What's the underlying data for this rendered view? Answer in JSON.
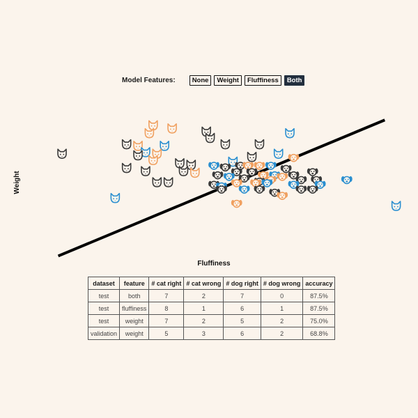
{
  "controls": {
    "label": "Model Features:",
    "buttons": [
      {
        "label": "None",
        "active": false
      },
      {
        "label": "Weight",
        "active": false
      },
      {
        "label": "Fluffiness",
        "active": false
      },
      {
        "label": "Both",
        "active": true
      }
    ]
  },
  "colors": {
    "background": "#fbf4ec",
    "dark": "#3a3a3a",
    "orange": "#f0a060",
    "blue": "#2a8fd0",
    "line": "#000000",
    "active_button": "#232f3e"
  },
  "chart_data": {
    "type": "scatter",
    "xlabel": "Fluffiness",
    "ylabel": "Weight",
    "xlim": [
      0,
      100
    ],
    "ylim": [
      0,
      100
    ],
    "decision_boundary": {
      "x": [
        8,
        94
      ],
      "y": [
        2,
        88
      ]
    },
    "legend": null,
    "points": [
      {
        "x": 33,
        "y": 84,
        "animal": "cat",
        "color": "orange"
      },
      {
        "x": 38,
        "y": 82,
        "animal": "cat",
        "color": "orange"
      },
      {
        "x": 32,
        "y": 79,
        "animal": "cat",
        "color": "orange"
      },
      {
        "x": 47,
        "y": 80,
        "animal": "cat",
        "color": "dark"
      },
      {
        "x": 48,
        "y": 76,
        "animal": "cat",
        "color": "dark"
      },
      {
        "x": 69,
        "y": 79,
        "animal": "cat",
        "color": "blue"
      },
      {
        "x": 9,
        "y": 66,
        "animal": "cat",
        "color": "dark"
      },
      {
        "x": 26,
        "y": 72,
        "animal": "cat",
        "color": "dark"
      },
      {
        "x": 29,
        "y": 71,
        "animal": "cat",
        "color": "orange"
      },
      {
        "x": 36,
        "y": 71,
        "animal": "cat",
        "color": "blue"
      },
      {
        "x": 52,
        "y": 72,
        "animal": "cat",
        "color": "dark"
      },
      {
        "x": 61,
        "y": 72,
        "animal": "cat",
        "color": "dark"
      },
      {
        "x": 31,
        "y": 67,
        "animal": "cat",
        "color": "blue"
      },
      {
        "x": 34,
        "y": 66,
        "animal": "cat",
        "color": "orange"
      },
      {
        "x": 29,
        "y": 65,
        "animal": "cat",
        "color": "dark"
      },
      {
        "x": 33,
        "y": 62,
        "animal": "cat",
        "color": "orange"
      },
      {
        "x": 59,
        "y": 64,
        "animal": "cat",
        "color": "dark"
      },
      {
        "x": 66,
        "y": 66,
        "animal": "cat",
        "color": "blue"
      },
      {
        "x": 40,
        "y": 60,
        "animal": "cat",
        "color": "dark"
      },
      {
        "x": 43,
        "y": 59,
        "animal": "cat",
        "color": "dark"
      },
      {
        "x": 54,
        "y": 61,
        "animal": "cat",
        "color": "blue"
      },
      {
        "x": 26,
        "y": 57,
        "animal": "cat",
        "color": "dark"
      },
      {
        "x": 31,
        "y": 55,
        "animal": "cat",
        "color": "dark"
      },
      {
        "x": 41,
        "y": 55,
        "animal": "cat",
        "color": "dark"
      },
      {
        "x": 44,
        "y": 54,
        "animal": "cat",
        "color": "orange"
      },
      {
        "x": 34,
        "y": 48,
        "animal": "cat",
        "color": "dark"
      },
      {
        "x": 37,
        "y": 48,
        "animal": "cat",
        "color": "dark"
      },
      {
        "x": 23,
        "y": 38,
        "animal": "cat",
        "color": "blue"
      },
      {
        "x": 97,
        "y": 33,
        "animal": "cat",
        "color": "blue"
      },
      {
        "x": 70,
        "y": 64,
        "animal": "dog",
        "color": "orange"
      },
      {
        "x": 49,
        "y": 59,
        "animal": "dog",
        "color": "blue"
      },
      {
        "x": 52,
        "y": 58,
        "animal": "dog",
        "color": "dark"
      },
      {
        "x": 56,
        "y": 59,
        "animal": "dog",
        "color": "dark"
      },
      {
        "x": 58,
        "y": 59,
        "animal": "dog",
        "color": "orange"
      },
      {
        "x": 61,
        "y": 59,
        "animal": "dog",
        "color": "orange"
      },
      {
        "x": 64,
        "y": 59,
        "animal": "dog",
        "color": "blue"
      },
      {
        "x": 68,
        "y": 57,
        "animal": "dog",
        "color": "dark"
      },
      {
        "x": 50,
        "y": 53,
        "animal": "dog",
        "color": "dark"
      },
      {
        "x": 55,
        "y": 55,
        "animal": "dog",
        "color": "dark"
      },
      {
        "x": 59,
        "y": 55,
        "animal": "dog",
        "color": "dark"
      },
      {
        "x": 62,
        "y": 53,
        "animal": "dog",
        "color": "orange"
      },
      {
        "x": 65,
        "y": 53,
        "animal": "dog",
        "color": "blue"
      },
      {
        "x": 67,
        "y": 52,
        "animal": "dog",
        "color": "orange"
      },
      {
        "x": 70,
        "y": 53,
        "animal": "dog",
        "color": "dark"
      },
      {
        "x": 75,
        "y": 55,
        "animal": "dog",
        "color": "dark"
      },
      {
        "x": 53,
        "y": 52,
        "animal": "dog",
        "color": "blue"
      },
      {
        "x": 57,
        "y": 51,
        "animal": "dog",
        "color": "dark"
      },
      {
        "x": 61,
        "y": 49,
        "animal": "dog",
        "color": "dark"
      },
      {
        "x": 64,
        "y": 50,
        "animal": "dog",
        "color": "orange"
      },
      {
        "x": 72,
        "y": 50,
        "animal": "dog",
        "color": "dark"
      },
      {
        "x": 76,
        "y": 50,
        "animal": "dog",
        "color": "dark"
      },
      {
        "x": 49,
        "y": 47,
        "animal": "dog",
        "color": "dark"
      },
      {
        "x": 51,
        "y": 46,
        "animal": "dog",
        "color": "blue"
      },
      {
        "x": 55,
        "y": 48,
        "animal": "dog",
        "color": "orange"
      },
      {
        "x": 60,
        "y": 48,
        "animal": "dog",
        "color": "orange"
      },
      {
        "x": 63,
        "y": 48,
        "animal": "dog",
        "color": "blue"
      },
      {
        "x": 70,
        "y": 47,
        "animal": "dog",
        "color": "blue"
      },
      {
        "x": 77,
        "y": 47,
        "animal": "dog",
        "color": "blue"
      },
      {
        "x": 51,
        "y": 44,
        "animal": "dog",
        "color": "dark"
      },
      {
        "x": 57,
        "y": 44,
        "animal": "dog",
        "color": "blue"
      },
      {
        "x": 61,
        "y": 44,
        "animal": "dog",
        "color": "dark"
      },
      {
        "x": 65,
        "y": 42,
        "animal": "dog",
        "color": "dark"
      },
      {
        "x": 67,
        "y": 40,
        "animal": "dog",
        "color": "orange"
      },
      {
        "x": 72,
        "y": 44,
        "animal": "dog",
        "color": "dark"
      },
      {
        "x": 75,
        "y": 44,
        "animal": "dog",
        "color": "dark"
      },
      {
        "x": 84,
        "y": 50,
        "animal": "dog",
        "color": "blue"
      },
      {
        "x": 55,
        "y": 35,
        "animal": "dog",
        "color": "orange"
      }
    ]
  },
  "table": {
    "headers": [
      "dataset",
      "feature",
      "# cat right",
      "# cat wrong",
      "# dog right",
      "# dog wrong",
      "accuracy"
    ],
    "rows": [
      [
        "test",
        "both",
        "7",
        "2",
        "7",
        "0",
        "87.5%"
      ],
      [
        "test",
        "fluffiness",
        "8",
        "1",
        "6",
        "1",
        "87.5%"
      ],
      [
        "test",
        "weight",
        "7",
        "2",
        "5",
        "2",
        "75.0%"
      ],
      [
        "validation",
        "weight",
        "5",
        "3",
        "6",
        "2",
        "68.8%"
      ]
    ]
  }
}
